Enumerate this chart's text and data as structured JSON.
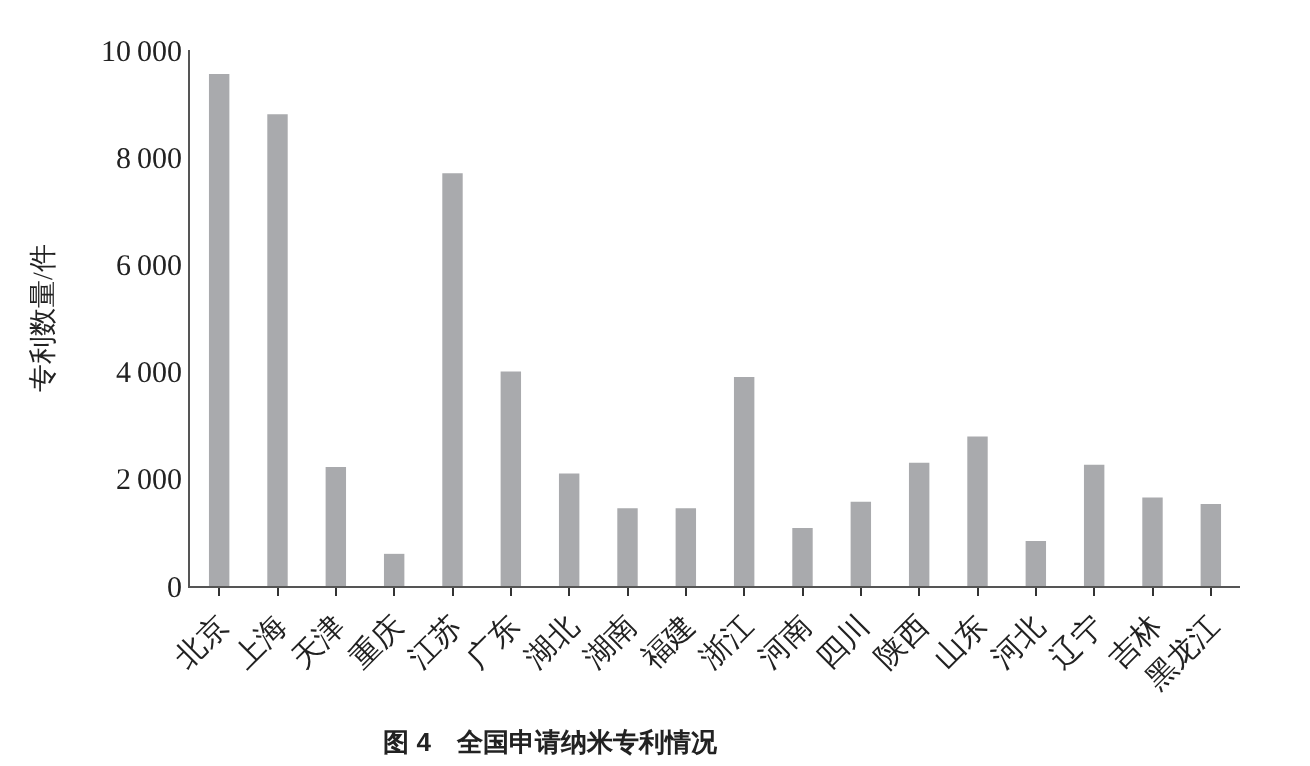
{
  "chart_data": {
    "type": "bar",
    "title": "图 4　全国申请纳米专利情况",
    "ylabel": "专利数量/件",
    "categories": [
      "北京",
      "上海",
      "天津",
      "重庆",
      "江苏",
      "广东",
      "湖北",
      "湖南",
      "福建",
      "浙江",
      "河南",
      "四川",
      "陕西",
      "山东",
      "河北",
      "辽宁",
      "吉林",
      "黑龙江"
    ],
    "values": [
      9550,
      8800,
      2220,
      600,
      7700,
      4000,
      2100,
      1450,
      1450,
      3900,
      1080,
      1570,
      2300,
      2790,
      840,
      2260,
      1650,
      1530
    ],
    "color": "#a9aaad",
    "ylim": [
      0,
      10000
    ],
    "yticks": [
      0,
      2000,
      4000,
      6000,
      8000,
      10000
    ],
    "grid": false
  }
}
